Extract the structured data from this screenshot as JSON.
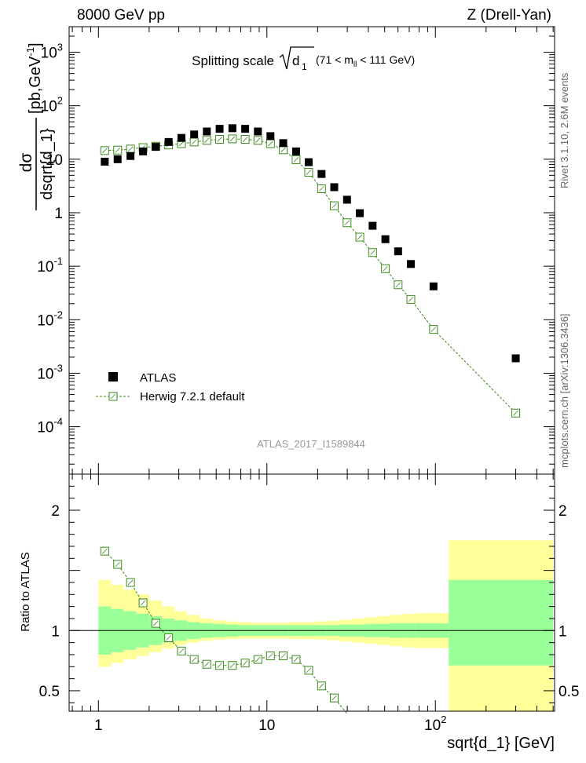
{
  "header": {
    "left": "8000 GeV pp",
    "right": "Z (Drell-Yan)"
  },
  "side_labels": {
    "top": "Rivet 3.1.10, 2.6M events",
    "bottom": "mcplots.cern.ch [arXiv:1306.3436]"
  },
  "chart_data": [
    {
      "type": "scatter",
      "panel": "main",
      "title": "Splitting scale",
      "title_sqrt": "d",
      "title_sqrt_sub": "1",
      "title_range": "(71 < m",
      "title_range_sub": "ll",
      "title_range_end": " < 111 GeV)",
      "ylabel_num": "dσ",
      "ylabel_den": "dsqrt{d_1}",
      "ylabel_unit": "[pb,GeV",
      "ylabel_unit_sup": "-1",
      "ylabel_unit_end": "]",
      "analysis_tag": "ATLAS_2017_I1589844",
      "xscale": "log",
      "yscale": "log",
      "xlim": [
        0.67,
        510
      ],
      "ylim": [
        1.3e-05,
        3000
      ],
      "y_ticks": [
        {
          "v": 0.0001,
          "base": "10",
          "exp": "-4"
        },
        {
          "v": 0.001,
          "base": "10",
          "exp": "-3"
        },
        {
          "v": 0.01,
          "base": "10",
          "exp": "-2"
        },
        {
          "v": 0.1,
          "base": "10",
          "exp": "-1"
        },
        {
          "v": 1,
          "base": "1",
          "exp": ""
        },
        {
          "v": 10,
          "base": "10",
          "exp": ""
        },
        {
          "v": 100,
          "base": "10",
          "exp": "2"
        },
        {
          "v": 1000,
          "base": "10",
          "exp": "3"
        }
      ],
      "legend_position": "bottom-left",
      "series": [
        {
          "name": "ATLAS",
          "marker": "filled-square",
          "color": "#000000",
          "x": [
            1.09,
            1.3,
            1.55,
            1.84,
            2.19,
            2.61,
            3.11,
            3.7,
            4.4,
            5.24,
            6.24,
            7.43,
            8.84,
            10.5,
            12.5,
            14.9,
            17.7,
            21.1,
            25.1,
            29.9,
            35.6,
            42.4,
            50.5,
            60.1,
            71.5,
            97.5,
            300.0
          ],
          "y": [
            9,
            10,
            11.5,
            14,
            17,
            21,
            25,
            29,
            33,
            37,
            38,
            37,
            33,
            27,
            20,
            14,
            8.8,
            5.3,
            3.0,
            1.75,
            0.98,
            0.57,
            0.32,
            0.19,
            0.11,
            0.042,
            0.0019
          ]
        },
        {
          "name": "Herwig 7.2.1 default",
          "marker": "open-square",
          "color": "#3a8a1a",
          "x": [
            1.09,
            1.3,
            1.55,
            1.84,
            2.19,
            2.61,
            3.11,
            3.7,
            4.4,
            5.24,
            6.24,
            7.43,
            8.84,
            10.5,
            12.5,
            14.9,
            17.7,
            21.1,
            25.1,
            29.9,
            35.6,
            42.4,
            50.5,
            60.1,
            71.5,
            97.5,
            300.0
          ],
          "y": [
            14.5,
            14.8,
            15.5,
            16.5,
            17.5,
            18.5,
            19.5,
            21,
            22.5,
            23.5,
            24,
            23.5,
            22.5,
            19.5,
            15,
            9.8,
            5.7,
            2.8,
            1.35,
            0.65,
            0.35,
            0.18,
            0.09,
            0.045,
            0.024,
            0.0066,
            0.00018
          ]
        }
      ]
    },
    {
      "type": "scatter",
      "panel": "ratio",
      "ylabel": "Ratio to ATLAS",
      "xlabel": "sqrt{d_1} [GeV]",
      "xscale": "log",
      "xlim": [
        0.67,
        510
      ],
      "ylim": [
        0.33,
        2.3
      ],
      "y_ticks": [
        0.5,
        1,
        2
      ],
      "y_tick_labels": [
        "0.5",
        "1",
        "2"
      ],
      "x_tick_labels": [
        {
          "v": 1,
          "base": "1",
          "exp": ""
        },
        {
          "v": 10,
          "base": "10",
          "exp": ""
        },
        {
          "v": 100,
          "base": "10",
          "exp": "2"
        }
      ],
      "reference_line": 1,
      "bands": {
        "edges": [
          1.0,
          1.19,
          1.41,
          1.68,
          2.0,
          2.38,
          2.83,
          3.36,
          4.0,
          4.76,
          5.66,
          6.73,
          8.0,
          9.51,
          11.3,
          13.5,
          16.0,
          19.0,
          22.6,
          26.9,
          32.0,
          38.1,
          45.3,
          53.8,
          64.0,
          76.1,
          120.0,
          500.0
        ],
        "green_lo": [
          0.8,
          0.82,
          0.84,
          0.86,
          0.88,
          0.9,
          0.915,
          0.93,
          0.94,
          0.945,
          0.95,
          0.955,
          0.955,
          0.955,
          0.955,
          0.955,
          0.955,
          0.955,
          0.955,
          0.95,
          0.95,
          0.945,
          0.945,
          0.94,
          0.94,
          0.94,
          0.71
        ],
        "green_hi": [
          1.2,
          1.18,
          1.16,
          1.14,
          1.12,
          1.1,
          1.085,
          1.07,
          1.06,
          1.055,
          1.05,
          1.045,
          1.045,
          1.045,
          1.045,
          1.045,
          1.045,
          1.045,
          1.045,
          1.05,
          1.05,
          1.055,
          1.055,
          1.06,
          1.06,
          1.06,
          1.42
        ],
        "yellow_lo": [
          0.7,
          0.73,
          0.76,
          0.79,
          0.82,
          0.85,
          0.88,
          0.9,
          0.915,
          0.925,
          0.93,
          0.935,
          0.935,
          0.935,
          0.935,
          0.93,
          0.93,
          0.925,
          0.92,
          0.91,
          0.9,
          0.89,
          0.88,
          0.87,
          0.86,
          0.855,
          0.25
        ],
        "yellow_hi": [
          1.42,
          1.38,
          1.34,
          1.3,
          1.25,
          1.2,
          1.16,
          1.13,
          1.1,
          1.085,
          1.075,
          1.07,
          1.065,
          1.065,
          1.065,
          1.07,
          1.07,
          1.075,
          1.08,
          1.09,
          1.1,
          1.11,
          1.12,
          1.13,
          1.14,
          1.145,
          1.75
        ]
      },
      "series": [
        {
          "name": "Herwig 7.2.1 default",
          "marker": "open-square",
          "color": "#3a8a1a",
          "x": [
            1.09,
            1.3,
            1.55,
            1.84,
            2.19,
            2.61,
            3.11,
            3.7,
            4.4,
            5.24,
            6.24,
            7.43,
            8.84,
            10.5,
            12.5,
            14.9,
            17.7,
            21.1,
            25.1,
            29.9
          ],
          "y": [
            1.66,
            1.55,
            1.4,
            1.23,
            1.06,
            0.94,
            0.83,
            0.76,
            0.72,
            0.71,
            0.71,
            0.73,
            0.76,
            0.79,
            0.79,
            0.76,
            0.67,
            0.54,
            0.44,
            0.31
          ]
        }
      ]
    }
  ],
  "legend": {
    "items": [
      {
        "label": "ATLAS"
      },
      {
        "label": "Herwig 7.2.1 default"
      }
    ]
  },
  "colors": {
    "data": "#000000",
    "mc": "#3a8a1a",
    "band_inner": "#99ff99",
    "band_outer": "#ffff99"
  }
}
